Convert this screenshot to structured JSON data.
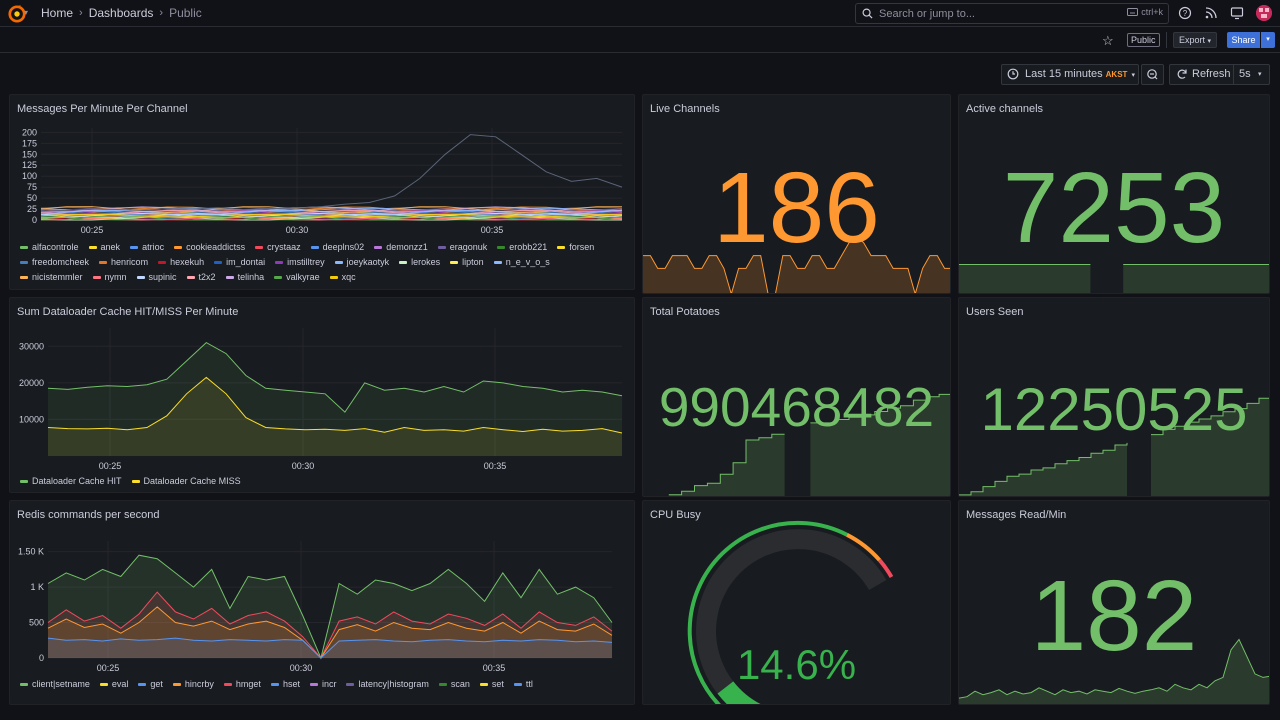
{
  "colors": {
    "bg": "#111217",
    "panel": "#181b1f",
    "orange": "#ff9830",
    "green": "#73bf69",
    "blue": "#3d71d9",
    "gauge_green": "#37b24d",
    "gauge_orange": "#ff9830",
    "gauge_red": "#f2495c"
  },
  "topbar": {
    "logo_icon": "grafana-logo-icon",
    "breadcrumbs": [
      "Home",
      "Dashboards",
      "Public"
    ],
    "search_placeholder": "Search or jump to...",
    "search_shortcut": "ctrl+k",
    "icons": [
      "help-icon",
      "rss-icon",
      "monitor-icon",
      "avatar"
    ]
  },
  "subbar": {
    "public_label": "Public",
    "export_label": "Export",
    "share_label": "Share"
  },
  "controls": {
    "time_range": "Last 15 minutes",
    "timezone": "AKST",
    "refresh_label": "Refresh",
    "refresh_interval": "5s"
  },
  "panels": {
    "messages": {
      "title": "Messages Per Minute Per Channel",
      "chart_data": {
        "type": "line",
        "y_ticks": [
          0,
          25,
          50,
          75,
          100,
          125,
          150,
          175,
          200
        ],
        "x_ticks": [
          "00:25",
          "00:30",
          "00:35"
        ],
        "ylim": [
          0,
          210
        ],
        "peak_series": {
          "name": "valkyrae",
          "values": [
            20,
            22,
            25,
            24,
            22,
            26,
            25,
            28,
            24,
            26,
            27,
            30,
            36,
            40,
            55,
            95,
            150,
            195,
            190,
            150,
            110,
            88,
            95,
            75
          ]
        },
        "series": [
          {
            "name": "alfacontrole",
            "color": "#73bf69"
          },
          {
            "name": "anek",
            "color": "#fade2a"
          },
          {
            "name": "atrioc",
            "color": "#5794f2"
          },
          {
            "name": "cookieaddictss",
            "color": "#ff9830"
          },
          {
            "name": "crystaaz",
            "color": "#f2495c"
          },
          {
            "name": "deeplns02",
            "color": "#5794f2"
          },
          {
            "name": "demonzz1",
            "color": "#b877d9"
          },
          {
            "name": "eragonuk",
            "color": "#705da0"
          },
          {
            "name": "erobb221",
            "color": "#37872d"
          },
          {
            "name": "forsen",
            "color": "#fade2a"
          },
          {
            "name": "freedomcheek",
            "color": "#447ebc"
          },
          {
            "name": "henricom",
            "color": "#e0752d"
          },
          {
            "name": "hexekuh",
            "color": "#c4162a"
          },
          {
            "name": "im_dontai",
            "color": "#1f60c4"
          },
          {
            "name": "imstilltrey",
            "color": "#8f3bb8"
          },
          {
            "name": "joeykaotyk",
            "color": "#8ab8ff"
          },
          {
            "name": "lerokes",
            "color": "#c8f2c2"
          },
          {
            "name": "lipton",
            "color": "#ffee52"
          },
          {
            "name": "n_e_v_o_s",
            "color": "#8ab8ff"
          },
          {
            "name": "nicistemmler",
            "color": "#ffb357"
          },
          {
            "name": "nymn",
            "color": "#ff7383"
          },
          {
            "name": "supinic",
            "color": "#c0d8ff"
          },
          {
            "name": "t2x2",
            "color": "#ffa6b0"
          },
          {
            "name": "telinha",
            "color": "#caa9e6"
          },
          {
            "name": "valkyrae",
            "color": "#56a64b"
          },
          {
            "name": "xqc",
            "color": "#f2cc0c"
          }
        ]
      }
    },
    "live_channels": {
      "title": "Live Channels",
      "value": "186",
      "color": "#ff9830"
    },
    "active_channels": {
      "title": "Active channels",
      "value": "7253",
      "color": "#73bf69"
    },
    "dataloader": {
      "title": "Sum Dataloader Cache HIT/MISS Per Minute",
      "chart_data": {
        "type": "area",
        "y_ticks": [
          10000,
          20000,
          30000
        ],
        "x_ticks": [
          "00:25",
          "00:30",
          "00:35"
        ],
        "ylim": [
          0,
          35000
        ],
        "series": [
          {
            "name": "Dataloader Cache HIT",
            "color": "#73bf69",
            "values": [
              18500,
              18200,
              18800,
              19200,
              19000,
              19500,
              21000,
              26000,
              31000,
              28000,
              22000,
              18500,
              18000,
              17500,
              17000,
              12000,
              20000,
              18000,
              18500,
              17500,
              19000,
              17500,
              20500,
              20000,
              19000,
              18500,
              17500,
              18000,
              17500,
              16500
            ]
          },
          {
            "name": "Dataloader Cache MISS",
            "color": "#fade2a",
            "values": [
              7800,
              7500,
              7400,
              7600,
              7200,
              7800,
              11000,
              17000,
              21500,
              17000,
              10500,
              7800,
              7400,
              7200,
              7300,
              7000,
              7500,
              6500,
              7800,
              7000,
              7200,
              6800,
              7800,
              7200,
              6700,
              7300,
              6800,
              7000,
              7500,
              6300
            ]
          }
        ]
      }
    },
    "total_potatoes": {
      "title": "Total Potatoes",
      "value": "990468482",
      "color": "#73bf69"
    },
    "users_seen": {
      "title": "Users Seen",
      "value": "12250525",
      "color": "#73bf69"
    },
    "redis": {
      "title": "Redis commands per second",
      "chart_data": {
        "type": "area",
        "y_ticks": [
          "0",
          "500",
          "1 K",
          "1.50 K"
        ],
        "x_ticks": [
          "00:25",
          "00:30",
          "00:35"
        ],
        "ylim": [
          0,
          1650
        ],
        "series": [
          {
            "name": "client|setname",
            "color": "#73bf69",
            "values": [
              1050,
              1200,
              1100,
              1250,
              1150,
              1450,
              1400,
              1200,
              1000,
              1250,
              700,
              1150,
              1100,
              1150,
              600,
              0,
              1050,
              900,
              1100,
              1050,
              950,
              1050,
              1250,
              1050,
              800,
              1200,
              850,
              1250,
              900,
              1000,
              850,
              500
            ]
          },
          {
            "name": "eval",
            "color": "#fade2a",
            "values": [
              0,
              0,
              0,
              0,
              0,
              0,
              0,
              0,
              0,
              0,
              0,
              0,
              0,
              0,
              0,
              0,
              0,
              0,
              0,
              0,
              0,
              0,
              0,
              0,
              0,
              0,
              0,
              0,
              0,
              0,
              0,
              0
            ]
          },
          {
            "name": "get",
            "color": "#5794f2",
            "values": [
              280,
              250,
              260,
              240,
              270,
              250,
              260,
              280,
              250,
              240,
              260,
              250,
              240,
              260,
              250,
              0,
              240,
              250,
              260,
              240,
              230,
              250,
              260,
              240,
              230,
              250,
              240,
              260,
              250,
              230,
              240,
              220
            ]
          },
          {
            "name": "hincrby",
            "color": "#ff9830",
            "values": [
              420,
              550,
              430,
              480,
              350,
              500,
              720,
              500,
              450,
              520,
              400,
              480,
              520,
              430,
              250,
              0,
              400,
              470,
              380,
              500,
              420,
              400,
              500,
              420,
              380,
              500,
              350,
              520,
              400,
              380,
              480,
              320
            ]
          },
          {
            "name": "hmget",
            "color": "#f2495c",
            "values": [
              500,
              680,
              520,
              600,
              420,
              620,
              930,
              650,
              550,
              700,
              480,
              600,
              650,
              520,
              300,
              0,
              520,
              580,
              480,
              650,
              520,
              480,
              620,
              560,
              460,
              620,
              420,
              650,
              500,
              460,
              580,
              380
            ]
          },
          {
            "name": "hset",
            "color": "#5794f2",
            "values": [
              0,
              0,
              0,
              0,
              0,
              0,
              0,
              0,
              0,
              0,
              0,
              0,
              0,
              0,
              0,
              0,
              0,
              0,
              0,
              0,
              0,
              0,
              0,
              0,
              0,
              0,
              0,
              0,
              0,
              0,
              0,
              0
            ]
          },
          {
            "name": "incr",
            "color": "#b877d9",
            "values": [
              0,
              0,
              0,
              0,
              0,
              0,
              0,
              0,
              0,
              0,
              0,
              0,
              0,
              0,
              0,
              0,
              0,
              0,
              0,
              0,
              0,
              0,
              0,
              0,
              0,
              0,
              0,
              0,
              0,
              0,
              0,
              0
            ]
          },
          {
            "name": "latency|histogram",
            "color": "#705da0",
            "values": [
              0,
              0,
              0,
              0,
              0,
              0,
              0,
              0,
              0,
              0,
              0,
              0,
              0,
              0,
              0,
              0,
              0,
              0,
              0,
              0,
              0,
              0,
              0,
              0,
              0,
              0,
              0,
              0,
              0,
              0,
              0,
              0
            ]
          },
          {
            "name": "scan",
            "color": "#37872d",
            "values": [
              0,
              0,
              0,
              0,
              0,
              0,
              0,
              0,
              0,
              0,
              0,
              0,
              0,
              0,
              0,
              0,
              0,
              0,
              0,
              0,
              0,
              0,
              0,
              0,
              0,
              0,
              0,
              0,
              0,
              0,
              0,
              0
            ]
          },
          {
            "name": "set",
            "color": "#fade2a",
            "values": [
              0,
              0,
              0,
              0,
              0,
              0,
              0,
              0,
              0,
              0,
              0,
              0,
              0,
              0,
              0,
              0,
              0,
              0,
              0,
              0,
              0,
              0,
              0,
              0,
              0,
              0,
              0,
              0,
              0,
              0,
              0,
              0
            ]
          },
          {
            "name": "ttl",
            "color": "#5794f2",
            "values": [
              0,
              0,
              0,
              0,
              0,
              0,
              0,
              0,
              0,
              0,
              0,
              0,
              0,
              0,
              0,
              0,
              0,
              0,
              0,
              0,
              0,
              0,
              0,
              0,
              0,
              0,
              0,
              0,
              0,
              0,
              0,
              0
            ]
          }
        ]
      }
    },
    "cpu_busy": {
      "title": "CPU Busy",
      "value": "14.6%",
      "percent": 14.6,
      "thresholds": [
        85,
        95
      ]
    },
    "messages_read": {
      "title": "Messages Read/Min",
      "value": "182",
      "color": "#73bf69"
    }
  },
  "sparklines": {
    "live_channels": [
      0.6,
      0.6,
      0.4,
      0.4,
      0.6,
      0.6,
      0.6,
      0.4,
      0.4,
      0.6,
      0.6,
      0.4,
      0,
      0.4,
      0.4,
      0.6,
      0.6,
      0,
      0,
      0.6,
      0.6,
      0.4,
      0.4,
      0.6,
      0.6,
      0.4,
      0.4,
      0.6,
      0.8,
      0.9,
      0.8,
      0.6,
      0.6,
      0.6,
      0.4,
      0.4,
      0.4,
      0,
      0.4,
      0.6,
      0.6,
      0.4,
      0.4
    ],
    "active_channels": [
      0.5,
      0.5,
      0.5,
      0.5,
      0.5,
      0.5,
      0.5,
      0.5,
      0.5,
      0,
      0.5,
      0.5,
      0.5,
      0.5,
      0.5,
      0.5,
      0.5,
      0.5,
      0.5,
      0.5
    ],
    "total_potatoes": [
      0,
      0,
      0.02,
      0.05,
      0.1,
      0.12,
      0.2,
      0.3,
      0.5,
      0.52,
      0.55,
      0.55,
      0,
      0.65,
      0.65,
      0.68,
      0.7,
      0.72,
      0.75,
      0.78,
      0.8,
      0.85,
      0.88,
      0.9,
      0.92
    ],
    "users_seen": [
      0.02,
      0.05,
      0.1,
      0.15,
      0.2,
      0.22,
      0.26,
      0.28,
      0.32,
      0.35,
      0.38,
      0.42,
      0.45,
      0.5,
      0.52,
      0,
      0.6,
      0.65,
      0.68,
      0.72,
      0.75,
      0.78,
      0.82,
      0.85,
      0.9,
      0.95,
      1.0
    ],
    "messages_read": [
      0.1,
      0.12,
      0.2,
      0.15,
      0.18,
      0.22,
      0.15,
      0.2,
      0.16,
      0.18,
      0.25,
      0.2,
      0.15,
      0.22,
      0.18,
      0.2,
      0.16,
      0.22,
      0.2,
      0.18,
      0.24,
      0.2,
      0.17,
      0.2,
      0.22,
      0.25,
      0.2,
      0.3,
      0.25,
      0.22,
      0.3,
      0.25,
      0.35,
      0.4,
      0.8,
      0.95,
      0.7,
      0.45,
      0.4,
      0.42
    ]
  }
}
